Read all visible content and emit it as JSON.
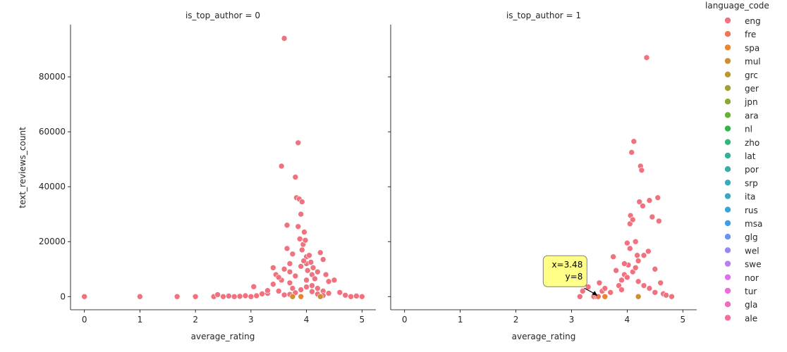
{
  "chart_data": {
    "type": "scatter",
    "facet_column": "is_top_author",
    "x_label": "average_rating",
    "y_label": "text_reviews_count",
    "xlim": [
      -0.25,
      5.25
    ],
    "ylim": [
      -4800,
      99000
    ],
    "x_ticks": [
      0,
      1,
      2,
      3,
      4,
      5
    ],
    "y_ticks": [
      0,
      20000,
      40000,
      60000,
      80000
    ],
    "y_tick_labels": [
      "0",
      "20000",
      "40000",
      "60000",
      "80000"
    ],
    "legend": {
      "title": "language_code",
      "placement": "right",
      "entries": [
        {
          "label": "eng",
          "color": "#f0727f"
        },
        {
          "label": "fre",
          "color": "#ef7557"
        },
        {
          "label": "spa",
          "color": "#e9842f"
        },
        {
          "label": "mul",
          "color": "#cd8f32"
        },
        {
          "label": "grc",
          "color": "#b89a32"
        },
        {
          "label": "ger",
          "color": "#a1a132"
        },
        {
          "label": "jpn",
          "color": "#8ba832"
        },
        {
          "label": "ara",
          "color": "#66b032"
        },
        {
          "label": "nl",
          "color": "#33b545"
        },
        {
          "label": "zho",
          "color": "#35b47c"
        },
        {
          "label": "lat",
          "color": "#36b095"
        },
        {
          "label": "por",
          "color": "#37ada9"
        },
        {
          "label": "srp",
          "color": "#38aab8"
        },
        {
          "label": "ita",
          "color": "#39a7c6"
        },
        {
          "label": "rus",
          "color": "#3ba3d7"
        },
        {
          "label": "msa",
          "color": "#3f9de9"
        },
        {
          "label": "glg",
          "color": "#6b94f0"
        },
        {
          "label": "wel",
          "color": "#9589f0"
        },
        {
          "label": "swe",
          "color": "#b97ef2"
        },
        {
          "label": "nor",
          "color": "#dd70ef"
        },
        {
          "label": "tur",
          "color": "#f06ad9"
        },
        {
          "label": "gla",
          "color": "#f26cbc"
        },
        {
          "label": "ale",
          "color": "#f36e9f"
        }
      ]
    },
    "panels": [
      {
        "title": "is_top_author = 0",
        "points": [
          [
            0,
            0
          ],
          [
            1,
            0
          ],
          [
            1.67,
            0
          ],
          [
            2,
            0
          ],
          [
            2.33,
            0
          ],
          [
            2.4,
            700
          ],
          [
            2.5,
            0
          ],
          [
            2.6,
            200
          ],
          [
            2.7,
            0
          ],
          [
            2.8,
            100
          ],
          [
            2.9,
            300
          ],
          [
            3.0,
            0
          ],
          [
            3.05,
            3600
          ],
          [
            3.1,
            300
          ],
          [
            3.2,
            1000
          ],
          [
            3.3,
            1200
          ],
          [
            3.4,
            10500
          ],
          [
            3.4,
            4500
          ],
          [
            3.45,
            8000
          ],
          [
            3.5,
            2000
          ],
          [
            3.55,
            47500
          ],
          [
            3.55,
            6000
          ],
          [
            3.6,
            94000
          ],
          [
            3.6,
            10000
          ],
          [
            3.65,
            17500
          ],
          [
            3.65,
            26000
          ],
          [
            3.7,
            12000
          ],
          [
            3.7,
            5000
          ],
          [
            3.75,
            3000
          ],
          [
            3.8,
            43500
          ],
          [
            3.82,
            36000
          ],
          [
            3.85,
            56000
          ],
          [
            3.85,
            25500
          ],
          [
            3.87,
            35500
          ],
          [
            3.88,
            21000
          ],
          [
            3.9,
            30000
          ],
          [
            3.92,
            34500
          ],
          [
            3.92,
            17000
          ],
          [
            3.94,
            19000
          ],
          [
            3.96,
            23500
          ],
          [
            3.98,
            20500
          ],
          [
            4.0,
            14500
          ],
          [
            4.0,
            12000
          ],
          [
            4.02,
            9500
          ],
          [
            4.05,
            15000
          ],
          [
            4.08,
            12500
          ],
          [
            4.1,
            8000
          ],
          [
            4.12,
            10500
          ],
          [
            4.15,
            6500
          ],
          [
            4.2,
            9000
          ],
          [
            4.25,
            16000
          ],
          [
            4.3,
            13500
          ],
          [
            4.35,
            8000
          ],
          [
            4.4,
            5500
          ],
          [
            4.5,
            6000
          ],
          [
            4.6,
            1500
          ],
          [
            4.7,
            500
          ],
          [
            4.8,
            0
          ],
          [
            5.0,
            0
          ],
          [
            4.9,
            200
          ],
          [
            3.3,
            2200
          ],
          [
            3.5,
            7000
          ],
          [
            3.7,
            9000
          ],
          [
            3.8,
            7500
          ],
          [
            3.9,
            11000
          ],
          [
            4.0,
            6000
          ],
          [
            4.1,
            4000
          ],
          [
            4.2,
            3000
          ],
          [
            4.3,
            2000
          ],
          [
            4.4,
            1200
          ],
          [
            3.6,
            600
          ],
          [
            3.7,
            800
          ],
          [
            3.8,
            1400
          ],
          [
            3.9,
            2500
          ],
          [
            4.0,
            3500
          ],
          [
            4.1,
            1800
          ],
          [
            4.2,
            900
          ],
          [
            4.3,
            400
          ],
          [
            3.95,
            13000
          ],
          [
            3.75,
            15500
          ]
        ],
        "other_language_points": [
          {
            "x": 3.9,
            "y": 0,
            "language": "spa"
          },
          {
            "x": 4.25,
            "y": 0,
            "language": "mul"
          },
          {
            "x": 3.75,
            "y": 0,
            "language": "mul"
          }
        ]
      },
      {
        "title": "is_top_author = 1",
        "points": [
          [
            3.15,
            0
          ],
          [
            3.2,
            2000
          ],
          [
            3.3,
            3500
          ],
          [
            3.4,
            0
          ],
          [
            3.45,
            0
          ],
          [
            3.5,
            5000
          ],
          [
            3.55,
            2000
          ],
          [
            3.6,
            3000
          ],
          [
            3.7,
            1500
          ],
          [
            3.75,
            14500
          ],
          [
            3.8,
            9500
          ],
          [
            3.85,
            4000
          ],
          [
            3.9,
            6000
          ],
          [
            3.95,
            8000
          ],
          [
            4.0,
            19500
          ],
          [
            4.02,
            11500
          ],
          [
            4.05,
            26500
          ],
          [
            4.06,
            29500
          ],
          [
            4.08,
            52500
          ],
          [
            4.1,
            28000
          ],
          [
            4.12,
            56500
          ],
          [
            4.15,
            20000
          ],
          [
            4.18,
            15000
          ],
          [
            4.2,
            13000
          ],
          [
            4.22,
            34500
          ],
          [
            4.24,
            47500
          ],
          [
            4.26,
            46000
          ],
          [
            4.28,
            33000
          ],
          [
            4.3,
            15000
          ],
          [
            4.35,
            87000
          ],
          [
            4.38,
            16500
          ],
          [
            4.4,
            35000
          ],
          [
            4.45,
            29000
          ],
          [
            4.5,
            10000
          ],
          [
            4.55,
            36000
          ],
          [
            4.57,
            27500
          ],
          [
            4.6,
            5000
          ],
          [
            4.65,
            1000
          ],
          [
            4.7,
            500
          ],
          [
            4.8,
            0
          ],
          [
            3.9,
            2500
          ],
          [
            4.0,
            7000
          ],
          [
            4.1,
            9000
          ],
          [
            4.2,
            5500
          ],
          [
            4.3,
            4000
          ],
          [
            4.4,
            3000
          ],
          [
            4.5,
            1500
          ],
          [
            3.95,
            12000
          ],
          [
            4.05,
            17500
          ],
          [
            4.15,
            10500
          ]
        ],
        "other_language_points": [
          {
            "x": 3.6,
            "y": 0,
            "language": "spa"
          },
          {
            "x": 4.2,
            "y": 0,
            "language": "mul"
          },
          {
            "x": 3.48,
            "y": 8,
            "language": "fre"
          }
        ],
        "annotation": {
          "line1": "x=3.48",
          "line2": "y=8",
          "x": 3.48,
          "y": 8
        }
      }
    ]
  }
}
